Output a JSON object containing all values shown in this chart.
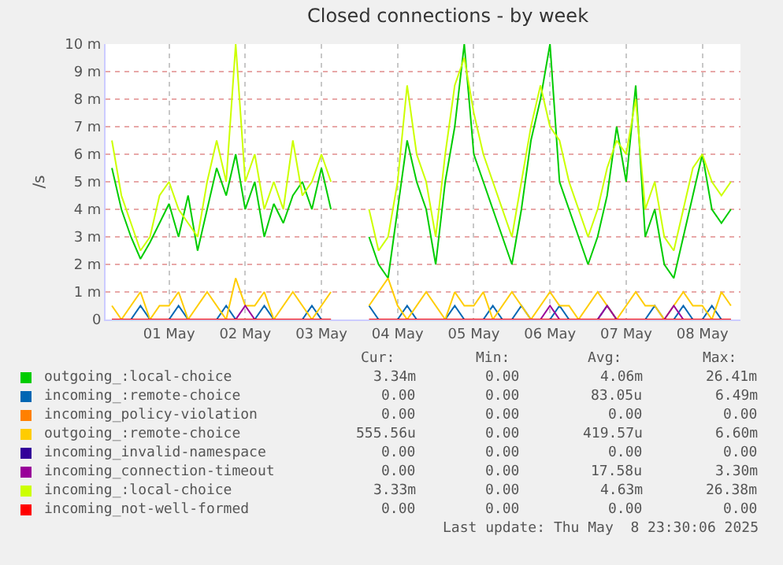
{
  "chart_data": {
    "type": "line",
    "title": "Closed connections - by week",
    "ylabel": "/s",
    "x": [
      "2025-04-30T18:00",
      "2025-04-30T21:00",
      "2025-05-01T00:00",
      "2025-05-01T03:00",
      "2025-05-01T06:00",
      "2025-05-01T09:00",
      "2025-05-01T12:00",
      "2025-05-01T15:00",
      "2025-05-01T18:00",
      "2025-05-01T21:00",
      "2025-05-02T00:00",
      "2025-05-02T03:00",
      "2025-05-02T06:00",
      "2025-05-02T09:00",
      "2025-05-02T12:00",
      "2025-05-02T15:00",
      "2025-05-02T18:00",
      "2025-05-02T21:00",
      "2025-05-03T00:00",
      "2025-05-03T03:00",
      "2025-05-03T06:00",
      "2025-05-03T09:00",
      "2025-05-03T12:00",
      "2025-05-03T15:00",
      "2025-05-03T18:00",
      "2025-05-03T21:00",
      "2025-05-04T00:00",
      "2025-05-04T03:00",
      "2025-05-04T06:00",
      "2025-05-04T09:00",
      "2025-05-04T12:00",
      "2025-05-04T15:00",
      "2025-05-04T18:00",
      "2025-05-04T21:00",
      "2025-05-05T00:00",
      "2025-05-05T03:00",
      "2025-05-05T06:00",
      "2025-05-05T09:00",
      "2025-05-05T12:00",
      "2025-05-05T15:00",
      "2025-05-05T18:00",
      "2025-05-05T21:00",
      "2025-05-06T00:00",
      "2025-05-06T03:00",
      "2025-05-06T06:00",
      "2025-05-06T09:00",
      "2025-05-06T12:00",
      "2025-05-06T15:00",
      "2025-05-06T18:00",
      "2025-05-06T21:00",
      "2025-05-07T00:00",
      "2025-05-07T03:00",
      "2025-05-07T06:00",
      "2025-05-07T09:00",
      "2025-05-07T12:00",
      "2025-05-07T15:00",
      "2025-05-07T18:00",
      "2025-05-07T21:00",
      "2025-05-08T00:00",
      "2025-05-08T03:00",
      "2025-05-08T06:00",
      "2025-05-08T09:00",
      "2025-05-08T12:00",
      "2025-05-08T15:00",
      "2025-05-08T18:00",
      "2025-05-08T21:00"
    ],
    "series": [
      {
        "name": "outgoing_:local-choice",
        "color": "#00cc00",
        "values": [
          5.5,
          4,
          3,
          2.2,
          2.8,
          3.5,
          4.2,
          3,
          4.5,
          2.5,
          4,
          5.5,
          4.5,
          6,
          4,
          5,
          3,
          4.2,
          3.5,
          4.5,
          5,
          4,
          5.5,
          4,
          null,
          null,
          null,
          3,
          2,
          1.5,
          4,
          6.5,
          5,
          4,
          2,
          5,
          7,
          10,
          6,
          5,
          4,
          3,
          2,
          4,
          6.5,
          8,
          10,
          5,
          4,
          3,
          2,
          3,
          4.5,
          7,
          5,
          8.5,
          3,
          4,
          2,
          1.5,
          3,
          4.5,
          6,
          4,
          3.5,
          4
        ]
      },
      {
        "name": "incoming_:remote-choice",
        "color": "#0066b3",
        "values": [
          0,
          0,
          0,
          0.5,
          0,
          0,
          0,
          0.5,
          0,
          0,
          0,
          0,
          0.5,
          0,
          0,
          0,
          0.5,
          0,
          0,
          0,
          0,
          0.5,
          0,
          0,
          null,
          null,
          null,
          0.5,
          0,
          0,
          0,
          0.5,
          0,
          0,
          0,
          0,
          0.5,
          0,
          0,
          0,
          0.5,
          0,
          0,
          0.5,
          0,
          0,
          0,
          0.5,
          0,
          0,
          0,
          0,
          0.5,
          0,
          0,
          0,
          0,
          0.5,
          0,
          0,
          0.5,
          0,
          0,
          0.5,
          0,
          0
        ]
      },
      {
        "name": "incoming_policy-violation",
        "color": "#ff8000",
        "values": [
          null,
          null,
          null,
          null,
          null,
          null,
          null,
          null,
          null,
          null,
          null,
          null,
          null,
          null,
          null,
          null,
          null,
          null,
          null,
          null,
          null,
          null,
          null,
          null,
          null,
          null,
          null,
          null,
          null,
          null,
          null,
          null,
          null,
          null,
          null,
          null,
          null,
          null,
          null,
          null,
          null,
          null,
          null,
          null,
          null,
          null,
          null,
          null,
          null,
          null,
          null,
          null,
          null,
          null,
          null,
          null,
          null,
          null,
          null,
          null,
          null,
          null,
          null,
          null,
          null,
          null
        ]
      },
      {
        "name": "outgoing_:remote-choice",
        "color": "#ffcc00",
        "values": [
          0.5,
          0,
          0.5,
          1,
          0,
          0.5,
          0.5,
          1,
          0,
          0.5,
          1,
          0.5,
          0,
          1.5,
          0.5,
          0.5,
          1,
          0,
          0.5,
          1,
          0.5,
          0,
          0.5,
          1,
          null,
          null,
          null,
          0.5,
          1,
          1.5,
          0.5,
          0,
          0.5,
          1,
          0.5,
          0,
          1,
          0.5,
          0.5,
          1,
          0,
          0.5,
          1,
          0.5,
          0,
          0.5,
          1,
          0.5,
          0.5,
          0,
          0.5,
          1,
          0.5,
          0,
          0.5,
          1,
          0.5,
          0.5,
          0,
          0.5,
          1,
          0.5,
          0.5,
          0,
          1,
          0.5
        ]
      },
      {
        "name": "incoming_invalid-namespace",
        "color": "#330099",
        "values": [
          null,
          null,
          null,
          null,
          null,
          null,
          null,
          null,
          null,
          null,
          null,
          null,
          null,
          null,
          null,
          null,
          null,
          null,
          null,
          null,
          null,
          null,
          null,
          null,
          null,
          null,
          null,
          null,
          null,
          null,
          null,
          null,
          null,
          null,
          null,
          null,
          null,
          null,
          null,
          null,
          null,
          null,
          null,
          null,
          null,
          null,
          null,
          null,
          null,
          null,
          null,
          null,
          null,
          null,
          null,
          null,
          null,
          null,
          null,
          null,
          null,
          null,
          null,
          null,
          null,
          null
        ]
      },
      {
        "name": "incoming_connection-timeout",
        "color": "#990099",
        "values": [
          null,
          null,
          null,
          null,
          null,
          null,
          null,
          null,
          null,
          null,
          null,
          null,
          null,
          0,
          0.5,
          0,
          null,
          null,
          null,
          null,
          null,
          null,
          null,
          null,
          null,
          null,
          null,
          null,
          null,
          null,
          null,
          null,
          null,
          null,
          null,
          null,
          null,
          null,
          null,
          null,
          null,
          null,
          null,
          null,
          null,
          0,
          0.5,
          0,
          null,
          null,
          null,
          0,
          0.5,
          0,
          null,
          null,
          null,
          null,
          0,
          0.5,
          0,
          null,
          null,
          null,
          null,
          null
        ]
      },
      {
        "name": "incoming_:local-choice",
        "color": "#ccff00",
        "values": [
          6.5,
          4.5,
          3.5,
          2.5,
          3,
          4.5,
          5,
          4,
          3.5,
          3,
          5,
          6.5,
          5,
          10,
          5,
          6,
          4,
          5,
          4,
          6.5,
          4.5,
          5,
          6,
          5,
          null,
          null,
          null,
          4,
          2.5,
          3,
          5,
          8.5,
          6,
          5,
          3,
          6,
          8.5,
          9.5,
          7.5,
          6,
          5,
          4,
          3,
          5,
          7,
          8.5,
          7,
          6.5,
          5,
          4,
          3,
          4,
          5.5,
          6.5,
          6,
          8,
          4,
          5,
          3,
          2.5,
          4,
          5.5,
          6,
          5,
          4.5,
          5
        ]
      },
      {
        "name": "incoming_not-well-formed",
        "color": "#ff0000",
        "x": [
          "2025-04-30T18:00",
          "2025-05-03T15:00",
          "2025-05-03T18:00",
          "2025-05-04T03:00",
          "2025-05-08T21:00"
        ],
        "values": [
          0,
          0,
          null,
          0,
          0
        ]
      }
    ],
    "xlim": [
      "2025-04-30T16:00",
      "2025-05-09T00:00"
    ],
    "xticks": [
      {
        "value": "2025-05-01T12:00",
        "label": "01 May"
      },
      {
        "value": "2025-05-02T12:00",
        "label": "02 May"
      },
      {
        "value": "2025-05-03T12:00",
        "label": "03 May"
      },
      {
        "value": "2025-05-04T12:00",
        "label": "04 May"
      },
      {
        "value": "2025-05-05T12:00",
        "label": "05 May"
      },
      {
        "value": "2025-05-06T12:00",
        "label": "06 May"
      },
      {
        "value": "2025-05-07T12:00",
        "label": "07 May"
      },
      {
        "value": "2025-05-08T12:00",
        "label": "08 May"
      }
    ],
    "ylim": [
      0,
      10
    ],
    "yticks": [
      0,
      {
        "value": 1,
        "label": "1 m"
      },
      {
        "value": 2,
        "label": "2 m"
      },
      {
        "value": 3,
        "label": "3 m"
      },
      {
        "value": 4,
        "label": "4 m"
      },
      {
        "value": 5,
        "label": "5 m"
      },
      {
        "value": 6,
        "label": "6 m"
      },
      {
        "value": 7,
        "label": "7 m"
      },
      {
        "value": 8,
        "label": "8 m"
      },
      {
        "value": 9,
        "label": "9 m"
      },
      {
        "value": 10,
        "label": "10 m"
      }
    ],
    "grid": true,
    "legend": "bottom",
    "annotations": [
      "Cur:",
      "Min:",
      "Avg:",
      "Max:",
      "3.34m",
      "0.00",
      "4.06m",
      "26.41m",
      "0.00",
      "0.00",
      "83.05u",
      "6.49m",
      "0.00",
      "0.00",
      "0.00",
      "0.00",
      "555.56u",
      "0.00",
      "419.57u",
      "6.60m",
      "0.00",
      "0.00",
      "0.00",
      "0.00",
      "0.00",
      "0.00",
      "17.58u",
      "3.30m",
      "3.33m",
      "0.00",
      "4.63m",
      "26.38m",
      "0.00",
      "0.00",
      "0.00",
      "0.00",
      "Last update: Thu May  8 23:30:06 2025"
    ]
  }
}
